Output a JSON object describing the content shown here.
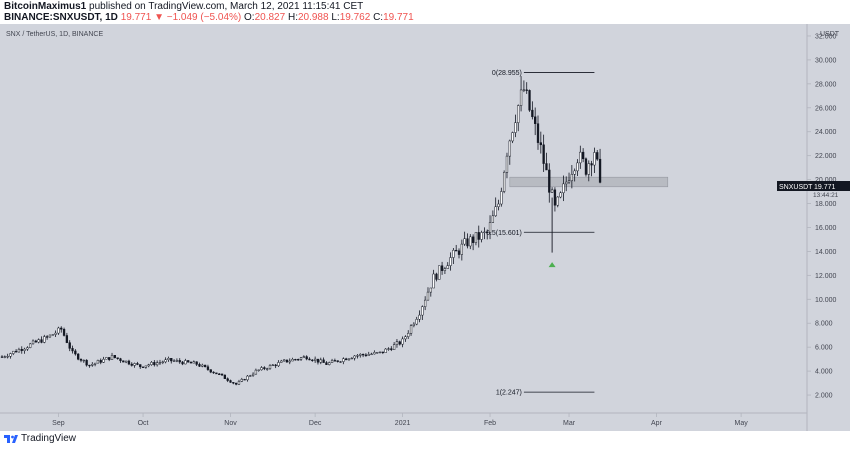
{
  "header": {
    "author": "BitcoinMaximus1",
    "published_text": "published on TradingView.com, March 12, 2021 11:15:41 CET",
    "symbol_line": "BINANCE:SNXUSDT, 1D",
    "price": "19.771",
    "change": "▼ −1.049 (−5.04%)",
    "ohlc": [
      {
        "k": "O:",
        "v": "20.827"
      },
      {
        "k": "H:",
        "v": "20.988"
      },
      {
        "k": "L:",
        "v": "19.762"
      },
      {
        "k": "C:",
        "v": "19.771"
      }
    ]
  },
  "footer": {
    "brand": "TradingView"
  },
  "colors": {
    "background": "#d1d4dc",
    "candle": "#131722",
    "accent_up": "#26a69a",
    "arrow": "#4caf50"
  },
  "chart_data": {
    "type": "candlestick",
    "title": "SNX / TetherUS, 1D, BINANCE",
    "y_unit": "USDT",
    "ylim": [
      0.5,
      33.0
    ],
    "y_ticks": [
      "2.000",
      "4.000",
      "6.000",
      "8.000",
      "10.000",
      "12.000",
      "14.000",
      "16.000",
      "18.000",
      "20.000",
      "22.000",
      "24.000",
      "26.000",
      "28.000",
      "30.000",
      "32.000"
    ],
    "x_ticks": [
      {
        "label": "Sep",
        "date": "2020-09-01"
      },
      {
        "label": "Oct",
        "date": "2020-10-01"
      },
      {
        "label": "Nov",
        "date": "2020-11-01"
      },
      {
        "label": "Dec",
        "date": "2020-12-01"
      },
      {
        "label": "2021",
        "date": "2021-01-01"
      },
      {
        "label": "Feb",
        "date": "2021-02-01"
      },
      {
        "label": "Mar",
        "date": "2021-03-01"
      },
      {
        "label": "Apr",
        "date": "2021-04-01"
      },
      {
        "label": "May",
        "date": "2021-05-01"
      }
    ],
    "x_range": [
      "2020-08-12",
      "2021-05-24"
    ],
    "close_trend": [
      {
        "date": "2020-08-12",
        "close": 5.2
      },
      {
        "date": "2020-08-20",
        "close": 6.0
      },
      {
        "date": "2020-08-28",
        "close": 6.8
      },
      {
        "date": "2020-09-02",
        "close": 7.5
      },
      {
        "date": "2020-09-06",
        "close": 5.5
      },
      {
        "date": "2020-09-12",
        "close": 4.5
      },
      {
        "date": "2020-09-20",
        "close": 5.2
      },
      {
        "date": "2020-09-30",
        "close": 4.4
      },
      {
        "date": "2020-10-10",
        "close": 4.9
      },
      {
        "date": "2020-10-20",
        "close": 4.6
      },
      {
        "date": "2020-10-28",
        "close": 3.7
      },
      {
        "date": "2020-11-03",
        "close": 2.9
      },
      {
        "date": "2020-11-10",
        "close": 4.0
      },
      {
        "date": "2020-11-20",
        "close": 4.8
      },
      {
        "date": "2020-11-28",
        "close": 5.2
      },
      {
        "date": "2020-12-05",
        "close": 4.6
      },
      {
        "date": "2020-12-15",
        "close": 5.3
      },
      {
        "date": "2020-12-24",
        "close": 5.5
      },
      {
        "date": "2021-01-01",
        "close": 6.5
      },
      {
        "date": "2021-01-07",
        "close": 9.0
      },
      {
        "date": "2021-01-12",
        "close": 11.8
      },
      {
        "date": "2021-01-17",
        "close": 13.2
      },
      {
        "date": "2021-01-24",
        "close": 14.8
      },
      {
        "date": "2021-01-31",
        "close": 15.5
      },
      {
        "date": "2021-02-04",
        "close": 18.0
      },
      {
        "date": "2021-02-07",
        "close": 22.5
      },
      {
        "date": "2021-02-10",
        "close": 25.5
      },
      {
        "date": "2021-02-13",
        "close": 27.5
      },
      {
        "date": "2021-02-16",
        "close": 25.0
      },
      {
        "date": "2021-02-19",
        "close": 22.5
      },
      {
        "date": "2021-02-22",
        "close": 19.5
      },
      {
        "date": "2021-02-24",
        "close": 17.5
      },
      {
        "date": "2021-02-26",
        "close": 18.5
      },
      {
        "date": "2021-03-01",
        "close": 20.5
      },
      {
        "date": "2021-03-04",
        "close": 22.0
      },
      {
        "date": "2021-03-07",
        "close": 21.0
      },
      {
        "date": "2021-03-10",
        "close": 22.5
      },
      {
        "date": "2021-03-12",
        "close": 19.771
      }
    ],
    "fib_levels": [
      {
        "label": "0(28.955)",
        "value": 28.955
      },
      {
        "label": "0.5(15.601)",
        "value": 15.601
      },
      {
        "label": "1(2.247)",
        "value": 2.247
      }
    ],
    "support_zone": [
      19.4,
      20.2
    ],
    "arrow_marker": {
      "date": "2021-02-23",
      "value": 12.9
    },
    "last_price": {
      "symbol": "SNXUSDT",
      "value": "19.771",
      "countdown": "13:44:21"
    }
  }
}
